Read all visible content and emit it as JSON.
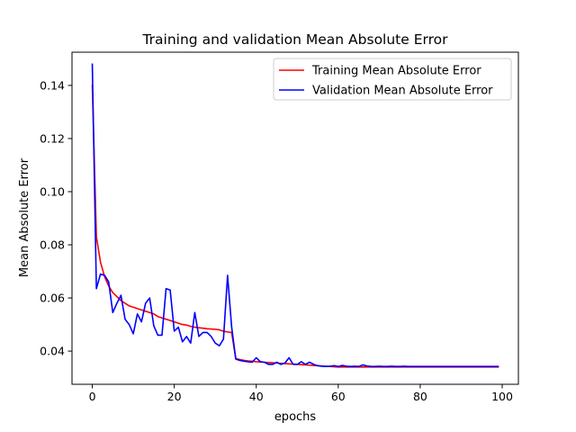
{
  "chart_data": {
    "type": "line",
    "title": "Training and validation Mean Absolute Error",
    "xlabel": "epochs",
    "ylabel": "Mean Absolute Error",
    "xlim": [
      -4.95,
      103.95
    ],
    "ylim": [
      0.0275,
      0.1525
    ],
    "xticks": [
      0,
      20,
      40,
      60,
      80,
      100
    ],
    "yticks": [
      0.04,
      0.06,
      0.08,
      0.1,
      0.12,
      0.14
    ],
    "xtick_labels": [
      "0",
      "20",
      "40",
      "60",
      "80",
      "100"
    ],
    "ytick_labels": [
      "0.04",
      "0.06",
      "0.08",
      "0.10",
      "0.12",
      "0.14"
    ],
    "grid": false,
    "legend_position": "top-right",
    "x": [
      0,
      1,
      2,
      3,
      4,
      5,
      6,
      7,
      8,
      9,
      10,
      11,
      12,
      13,
      14,
      15,
      16,
      17,
      18,
      19,
      20,
      21,
      22,
      23,
      24,
      25,
      26,
      27,
      28,
      29,
      30,
      31,
      32,
      33,
      34,
      35,
      36,
      37,
      38,
      39,
      40,
      41,
      42,
      43,
      44,
      45,
      46,
      47,
      48,
      49,
      50,
      51,
      52,
      53,
      54,
      55,
      56,
      57,
      58,
      59,
      60,
      61,
      62,
      63,
      64,
      65,
      66,
      67,
      68,
      69,
      70,
      71,
      72,
      73,
      74,
      75,
      76,
      77,
      78,
      79,
      80,
      81,
      82,
      83,
      84,
      85,
      86,
      87,
      88,
      89,
      90,
      91,
      92,
      93,
      94,
      95,
      96,
      97,
      98,
      99
    ],
    "series": [
      {
        "name": "Training Mean Absolute Error",
        "color": "#ff0000",
        "values": [
          0.14,
          0.083,
          0.0735,
          0.068,
          0.0645,
          0.062,
          0.0605,
          0.059,
          0.058,
          0.057,
          0.0565,
          0.056,
          0.0555,
          0.055,
          0.0545,
          0.054,
          0.053,
          0.0525,
          0.052,
          0.0515,
          0.051,
          0.0505,
          0.05,
          0.0498,
          0.0493,
          0.049,
          0.0488,
          0.0486,
          0.0484,
          0.0483,
          0.0482,
          0.048,
          0.0475,
          0.0472,
          0.047,
          0.0372,
          0.0368,
          0.0365,
          0.0363,
          0.0362,
          0.036,
          0.0359,
          0.0358,
          0.0357,
          0.0356,
          0.0355,
          0.0354,
          0.0353,
          0.0352,
          0.0351,
          0.035,
          0.0349,
          0.0348,
          0.0347,
          0.0346,
          0.0345,
          0.0344,
          0.0343,
          0.0342,
          0.0341,
          0.034,
          0.034,
          0.034,
          0.034,
          0.034,
          0.034,
          0.034,
          0.034,
          0.034,
          0.034,
          0.034,
          0.034,
          0.034,
          0.034,
          0.034,
          0.034,
          0.034,
          0.034,
          0.034,
          0.034,
          0.034,
          0.034,
          0.034,
          0.034,
          0.034,
          0.034,
          0.034,
          0.034,
          0.034,
          0.034,
          0.034,
          0.034,
          0.034,
          0.034,
          0.034,
          0.034,
          0.034,
          0.034,
          0.034,
          0.034
        ]
      },
      {
        "name": "Validation Mean Absolute Error",
        "color": "#0000ff",
        "values": [
          0.148,
          0.0635,
          0.069,
          0.0685,
          0.066,
          0.0545,
          0.058,
          0.061,
          0.052,
          0.05,
          0.0465,
          0.054,
          0.051,
          0.058,
          0.06,
          0.0495,
          0.046,
          0.046,
          0.0635,
          0.063,
          0.0475,
          0.049,
          0.0435,
          0.0455,
          0.043,
          0.0545,
          0.0455,
          0.047,
          0.047,
          0.0455,
          0.043,
          0.042,
          0.0445,
          0.0685,
          0.049,
          0.037,
          0.0365,
          0.0362,
          0.036,
          0.0358,
          0.0375,
          0.036,
          0.0358,
          0.035,
          0.035,
          0.0358,
          0.035,
          0.0355,
          0.0375,
          0.035,
          0.035,
          0.036,
          0.035,
          0.0358,
          0.035,
          0.0345,
          0.0343,
          0.0342,
          0.0343,
          0.0345,
          0.0342,
          0.0346,
          0.0343,
          0.0342,
          0.0343,
          0.0342,
          0.0348,
          0.0344,
          0.0342,
          0.0342,
          0.0343,
          0.0342,
          0.0342,
          0.0343,
          0.0342,
          0.0342,
          0.0343,
          0.0342,
          0.0342,
          0.0342,
          0.0342,
          0.0342,
          0.0342,
          0.0342,
          0.0342,
          0.0342,
          0.0342,
          0.0342,
          0.0342,
          0.0342,
          0.0342,
          0.0342,
          0.0342,
          0.0342,
          0.0342,
          0.0342,
          0.0342,
          0.0342,
          0.0342,
          0.0342
        ]
      }
    ]
  }
}
